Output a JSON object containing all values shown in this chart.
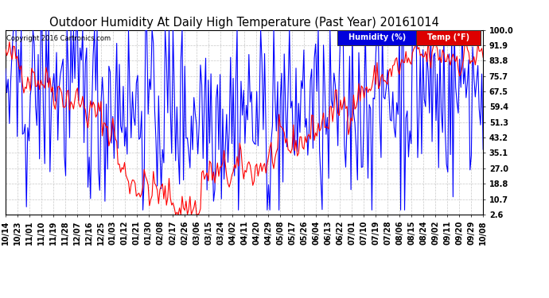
{
  "title": "Outdoor Humidity At Daily High Temperature (Past Year) 20161014",
  "copyright": "Copyright 2016 Cartronics.com",
  "legend_labels": [
    "Humidity (%)",
    "Temp (°F)"
  ],
  "ylabel_ticks": [
    2.6,
    10.7,
    18.8,
    27.0,
    35.1,
    43.2,
    51.3,
    59.4,
    67.5,
    75.7,
    83.8,
    91.9,
    100.0
  ],
  "xlabels": [
    "10/14",
    "10/23",
    "11/01",
    "11/10",
    "11/19",
    "11/28",
    "12/07",
    "12/16",
    "12/25",
    "01/03",
    "01/12",
    "01/21",
    "01/30",
    "02/08",
    "02/17",
    "02/26",
    "03/06",
    "03/15",
    "03/24",
    "04/02",
    "04/11",
    "04/20",
    "04/29",
    "05/08",
    "05/17",
    "05/26",
    "06/04",
    "06/13",
    "06/22",
    "07/01",
    "07/10",
    "07/19",
    "07/28",
    "08/06",
    "08/15",
    "08/24",
    "09/02",
    "09/11",
    "09/20",
    "09/29",
    "10/08"
  ],
  "background_color": "#ffffff",
  "grid_color": "#c8c8c8",
  "humidity_color": "#0000ff",
  "temp_color": "#ff0000",
  "title_fontsize": 10.5,
  "tick_fontsize": 7,
  "copyright_fontsize": 6,
  "legend_fontsize": 7,
  "ylim": [
    2.6,
    100.0
  ],
  "linewidth": 0.8
}
